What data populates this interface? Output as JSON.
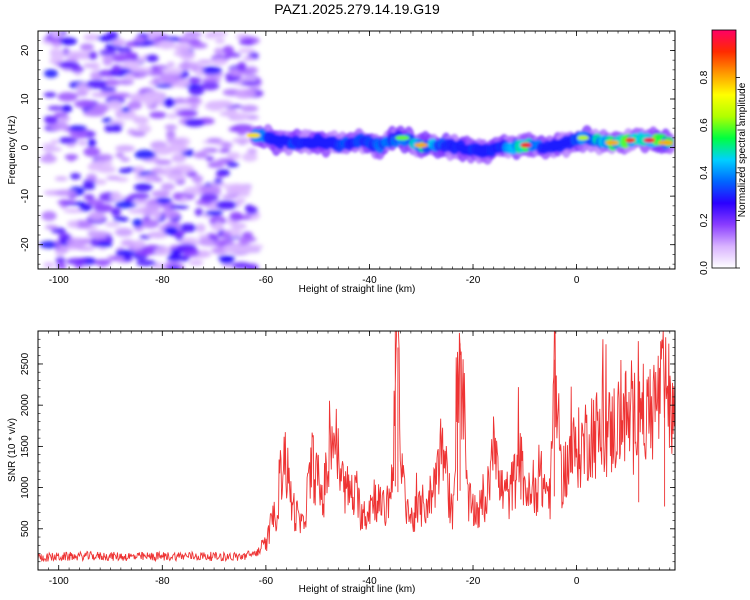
{
  "figure_title": "PAZ1.2025.279.14.19.G19",
  "chart_data": [
    {
      "type": "heatmap",
      "title": "PAZ1.2025.279.14.19.G19",
      "xlabel": "Height of straight line (km)",
      "ylabel": "Frequency (Hz)",
      "xlim": [
        -104,
        19
      ],
      "ylim": [
        -25,
        24
      ],
      "xticks": [
        -100,
        -80,
        -60,
        -40,
        -20,
        0
      ],
      "yticks": [
        -20,
        -10,
        0,
        10,
        20
      ],
      "noise_region_x": [
        -102,
        -62
      ],
      "signal_track": {
        "x": [
          -62,
          -58,
          -54,
          -50,
          -46,
          -42,
          -38,
          -34,
          -30,
          -26,
          -22,
          -18,
          -14,
          -10,
          -6,
          -2,
          2,
          6,
          10,
          14,
          18
        ],
        "freq": [
          2.5,
          1.5,
          1.0,
          1.2,
          0.5,
          1.5,
          0.5,
          2.0,
          0.5,
          0.5,
          0.0,
          -1.0,
          0.0,
          0.5,
          0.0,
          1.0,
          2.0,
          1.0,
          1.5,
          1.5,
          1.0
        ],
        "amplitude": [
          0.75,
          0.45,
          0.5,
          0.4,
          0.5,
          0.55,
          0.55,
          0.6,
          0.8,
          0.55,
          0.45,
          0.5,
          0.55,
          0.95,
          0.5,
          0.5,
          0.65,
          0.8,
          0.9,
          0.95,
          0.8
        ]
      },
      "colorbar": {
        "label": "Normalized spectral amplitude",
        "range": [
          0,
          1
        ],
        "ticks": [
          "0.0",
          "0.2",
          "0.4",
          "0.6",
          "0.8"
        ],
        "tick_values": [
          0,
          0.2,
          0.4,
          0.6,
          0.8
        ],
        "colors": [
          "#ffffff",
          "#d9b3ff",
          "#8a3dff",
          "#2a00ff",
          "#0066ff",
          "#00d0ff",
          "#00ff40",
          "#b0ff00",
          "#ffff00",
          "#ff9900",
          "#ff2a00",
          "#ff0066"
        ]
      }
    },
    {
      "type": "line",
      "xlabel": "Height of straight line (km)",
      "ylabel": "SNR (10 * v/v)",
      "xlim": [
        -104,
        19
      ],
      "ylim": [
        0,
        2900
      ],
      "xticks": [
        -100,
        -80,
        -60,
        -40,
        -20,
        0
      ],
      "yticks": [
        500,
        1000,
        1500,
        2000,
        2500
      ],
      "color": "#ee3333",
      "series": [
        {
          "name": "SNR",
          "x": [
            -104,
            -95,
            -85,
            -75,
            -65,
            -62,
            -60,
            -58,
            -56.5,
            -55,
            -53,
            -51,
            -49,
            -47,
            -45,
            -43,
            -41,
            -39,
            -37,
            -35.5,
            -35,
            -34.5,
            -34,
            -32,
            -30,
            -28,
            -26,
            -24,
            -23,
            -22.5,
            -21,
            -19,
            -17,
            -16,
            -15,
            -13,
            -11,
            -9,
            -7,
            -5,
            -4.3,
            -3,
            -1,
            0,
            1,
            3,
            5,
            7,
            9,
            11,
            12,
            13,
            15,
            17,
            19
          ],
          "y": [
            150,
            170,
            160,
            170,
            160,
            200,
            320,
            700,
            1450,
            800,
            500,
            1300,
            850,
            1700,
            1000,
            900,
            650,
            900,
            700,
            1100,
            2900,
            2700,
            1200,
            600,
            750,
            900,
            1500,
            650,
            2400,
            2750,
            800,
            700,
            900,
            1950,
            1000,
            900,
            1300,
            850,
            1100,
            900,
            2550,
            1100,
            1400,
            1450,
            1500,
            1700,
            1600,
            1700,
            1900,
            1700,
            2350,
            1800,
            2000,
            2200,
            1850
          ]
        }
      ]
    }
  ]
}
